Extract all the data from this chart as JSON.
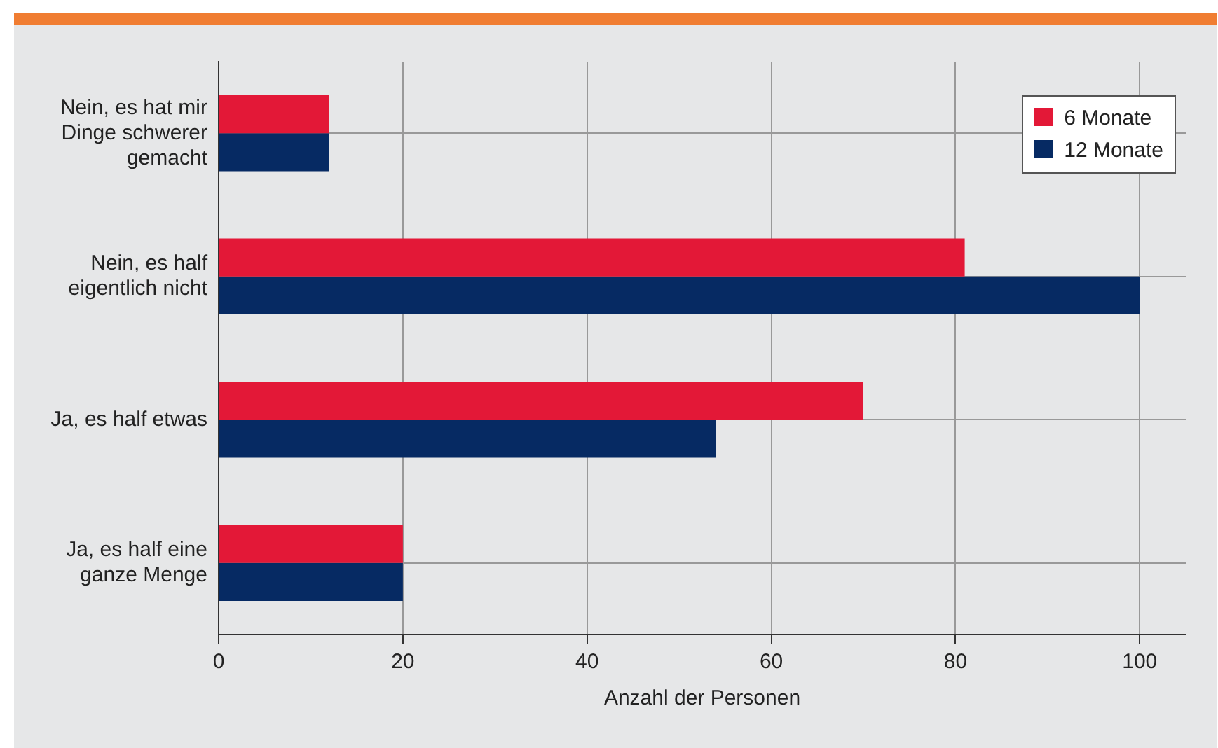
{
  "chart_data": {
    "type": "bar",
    "orientation": "horizontal",
    "xlabel": "Anzahl der Personen",
    "categories": [
      "Nein, es hat mir Dinge schwerer gemacht",
      "Nein, es half eigentlich nicht",
      "Ja, es half etwas",
      "Ja, es half eine ganze Menge"
    ],
    "series": [
      {
        "name": "6 Monate",
        "color": "#e31837",
        "values": [
          12,
          81,
          70,
          20
        ]
      },
      {
        "name": "12 Monate",
        "color": "#062a63",
        "values": [
          12,
          100,
          54,
          20
        ]
      }
    ],
    "xlim": [
      0,
      105
    ],
    "xticks": [
      0,
      20,
      40,
      60,
      80,
      100
    ],
    "grid": true,
    "legend": "top right"
  }
}
